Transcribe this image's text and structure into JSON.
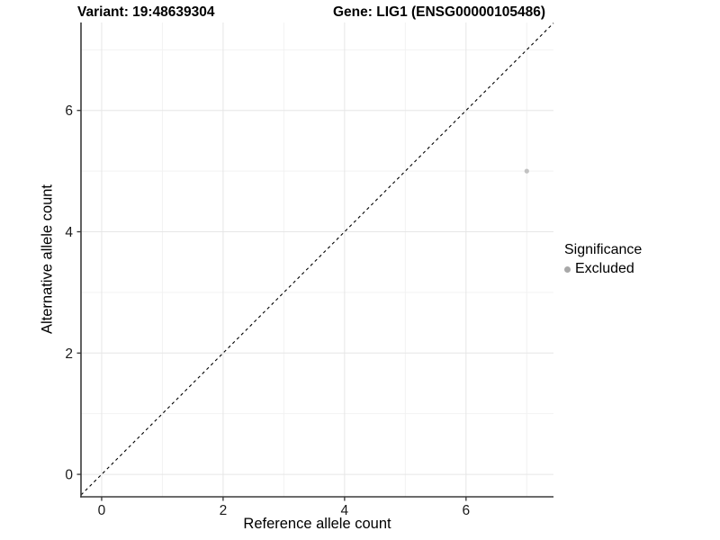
{
  "titles": {
    "variant": "Variant: 19:48639304",
    "gene": "Gene: LIG1 (ENSG00000105486)"
  },
  "axes": {
    "x_label": "Reference allele count",
    "y_label": "Alternative allele count",
    "x_tick_labels": [
      "0",
      "2",
      "4",
      "6"
    ],
    "y_tick_labels": [
      "0",
      "2",
      "4",
      "6"
    ]
  },
  "legend": {
    "title": "Significance",
    "items": [
      {
        "label": "Excluded",
        "color": "#a8a8a8"
      }
    ]
  },
  "colors": {
    "grid_major": "#e6e6e6",
    "grid_minor": "#f2f2f2",
    "axis_line": "#3a3a3a",
    "tick_mark": "#333333",
    "tick_text": "#1a1a1a",
    "identity_line": "#000000",
    "point": "#c2c2c2"
  },
  "chart_data": {
    "type": "scatter",
    "title_left": "Variant: 19:48639304",
    "title_right": "Gene: LIG1 (ENSG00000105486)",
    "xlabel": "Reference allele count",
    "ylabel": "Alternative allele count",
    "xlim": [
      -0.34,
      7.44
    ],
    "ylim": [
      -0.37,
      7.45
    ],
    "x_major_ticks": [
      0,
      2,
      4,
      6
    ],
    "y_major_ticks": [
      0,
      2,
      4,
      6
    ],
    "x_minor_ticks": [
      1,
      3,
      5,
      7
    ],
    "y_minor_ticks": [
      1,
      3,
      5,
      7
    ],
    "grid": true,
    "legend_position": "right",
    "legend_title": "Significance",
    "series": [
      {
        "name": "Excluded",
        "points": [
          {
            "x": 7,
            "y": 5
          }
        ],
        "color": "#c2c2c2"
      }
    ],
    "reference_line": {
      "kind": "identity",
      "equation": "y = x",
      "style": "dashed",
      "color": "#000000"
    }
  }
}
